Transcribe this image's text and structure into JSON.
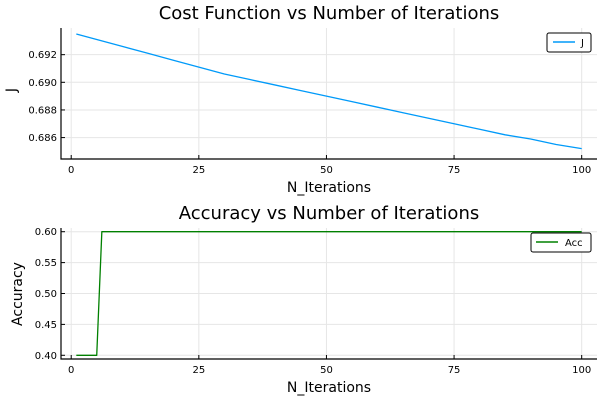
{
  "chart_data": [
    {
      "type": "line",
      "title": "Cost Function vs Number of Iterations",
      "xlabel": "N_Iterations",
      "ylabel": "J",
      "xlim": [
        -2,
        103
      ],
      "ylim": [
        0.68445,
        0.69393
      ],
      "xticks": [
        0,
        25,
        50,
        75,
        100
      ],
      "yticks": [
        0.686,
        0.688,
        0.69,
        0.692
      ],
      "ytick_labels": [
        "0.686",
        "0.688",
        "0.690",
        "0.692"
      ],
      "grid": true,
      "legend_position": "top-right",
      "series": [
        {
          "name": "J",
          "color": "#009af9",
          "x": [
            1,
            5,
            10,
            15,
            20,
            25,
            30,
            35,
            40,
            45,
            50,
            55,
            60,
            65,
            70,
            75,
            80,
            85,
            90,
            95,
            100
          ],
          "y": [
            0.6935,
            0.6931,
            0.6926,
            0.6921,
            0.6916,
            0.6911,
            0.6906,
            0.6902,
            0.6898,
            0.6894,
            0.689,
            0.6886,
            0.6882,
            0.6878,
            0.6874,
            0.687,
            0.6866,
            0.6862,
            0.6859,
            0.6855,
            0.6852
          ]
        }
      ]
    },
    {
      "type": "line",
      "title": "Accuracy vs Number of Iterations",
      "xlabel": "N_Iterations",
      "ylabel": "Accuracy",
      "xlim": [
        -2,
        103
      ],
      "ylim": [
        0.394,
        0.606
      ],
      "xticks": [
        0,
        25,
        50,
        75,
        100
      ],
      "yticks": [
        0.4,
        0.45,
        0.5,
        0.55,
        0.6
      ],
      "ytick_labels": [
        "0.40",
        "0.45",
        "0.50",
        "0.55",
        "0.60"
      ],
      "grid": true,
      "legend_position": "top-right",
      "series": [
        {
          "name": "Acc",
          "color": "#008000",
          "x": [
            1,
            2,
            3,
            4,
            5,
            6,
            10,
            20,
            40,
            60,
            80,
            100
          ],
          "y": [
            0.4,
            0.4,
            0.4,
            0.4,
            0.4,
            0.6,
            0.6,
            0.6,
            0.6,
            0.6,
            0.6,
            0.6
          ]
        }
      ]
    }
  ]
}
